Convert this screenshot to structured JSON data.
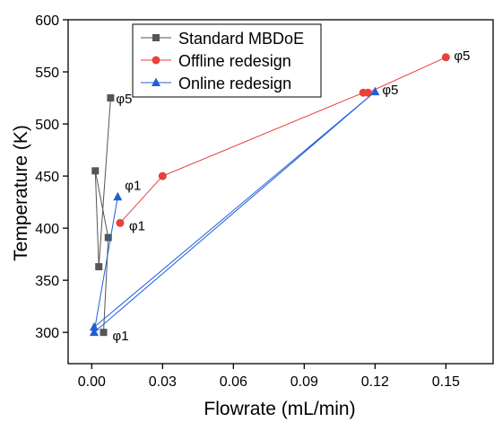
{
  "chart_data": {
    "type": "scatter",
    "xlabel": "Flowrate (mL/min)",
    "ylabel": "Temperature (K)",
    "xlim": [
      -0.01,
      0.17
    ],
    "ylim": [
      270,
      600
    ],
    "x_ticks": [
      0.0,
      0.03,
      0.06,
      0.09,
      0.12,
      0.15
    ],
    "x_tick_labels": [
      "0.00",
      "0.03",
      "0.06",
      "0.09",
      "0.12",
      "0.15"
    ],
    "y_ticks": [
      300,
      350,
      400,
      450,
      500,
      550,
      600
    ],
    "y_tick_labels": [
      "300",
      "350",
      "400",
      "450",
      "500",
      "550",
      "600"
    ],
    "legend_position": "top-left",
    "series": [
      {
        "name": "Standard MBDoE",
        "color": "#555555",
        "marker": "square",
        "points": [
          [
            0.005,
            300
          ],
          [
            0.007,
            391
          ],
          [
            0.0015,
            455
          ],
          [
            0.003,
            363
          ],
          [
            0.008,
            525
          ]
        ]
      },
      {
        "name": "Offline redesign",
        "color": "#e8413c",
        "marker": "circle",
        "points": [
          [
            0.012,
            405
          ],
          [
            0.03,
            450
          ],
          [
            0.115,
            530
          ],
          [
            0.117,
            530
          ],
          [
            0.15,
            564
          ]
        ]
      },
      {
        "name": "Online redesign",
        "color": "#1f5fd6",
        "marker": "triangle",
        "points": [
          [
            0.011,
            430
          ],
          [
            0.001,
            300
          ],
          [
            0.12,
            531
          ],
          [
            0.001,
            305
          ]
        ]
      }
    ],
    "annotations": [
      {
        "text": "φ5",
        "x": 0.008,
        "y": 525
      },
      {
        "text": "φ1",
        "x": 0.005,
        "y": 300
      },
      {
        "text": "φ1",
        "x": 0.012,
        "y": 405
      },
      {
        "text": "φ5",
        "x": 0.15,
        "y": 564
      },
      {
        "text": "φ1",
        "x": 0.011,
        "y": 430
      },
      {
        "text": "φ5",
        "x": 0.12,
        "y": 531
      }
    ]
  }
}
